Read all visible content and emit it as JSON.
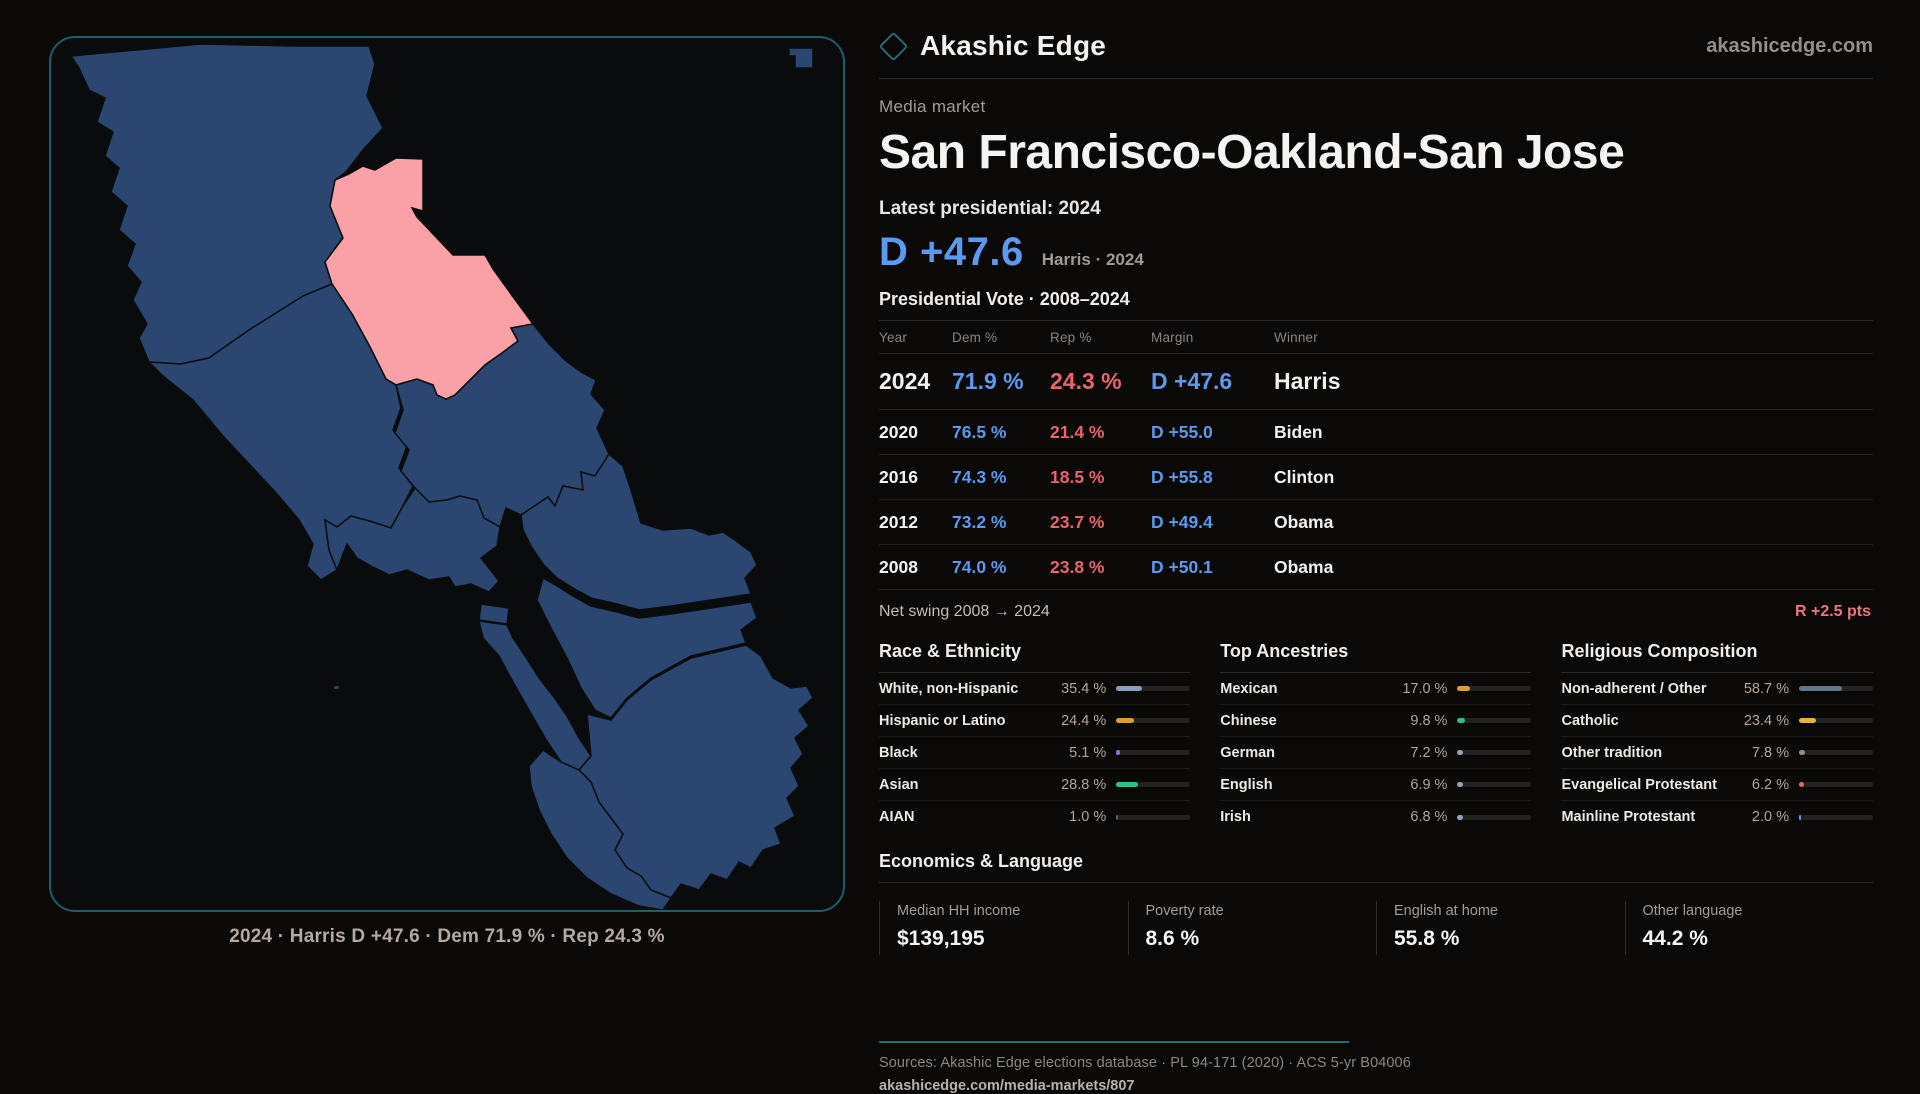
{
  "brand": {
    "name": "Akashic Edge",
    "site": "akashicedge.com"
  },
  "page": {
    "kicker": "Media market",
    "title": "San Francisco-Oakland-San Jose",
    "latest_label": "Latest presidential: 2024",
    "headline_margin": "D +47.6",
    "headline_caption": "Harris · 2024"
  },
  "vote_table": {
    "title": "Presidential Vote · 2008–2024",
    "columns": [
      "Year",
      "Dem %",
      "Rep %",
      "Margin",
      "Winner"
    ],
    "rows": [
      {
        "year": "2024",
        "dem": "71.9 %",
        "rep": "24.3 %",
        "margin": "D +47.6",
        "winner": "Harris",
        "highlight": true
      },
      {
        "year": "2020",
        "dem": "76.5 %",
        "rep": "21.4 %",
        "margin": "D +55.0",
        "winner": "Biden",
        "highlight": false
      },
      {
        "year": "2016",
        "dem": "74.3 %",
        "rep": "18.5 %",
        "margin": "D +55.8",
        "winner": "Clinton",
        "highlight": false
      },
      {
        "year": "2012",
        "dem": "73.2 %",
        "rep": "23.7 %",
        "margin": "D +49.4",
        "winner": "Obama",
        "highlight": false
      },
      {
        "year": "2008",
        "dem": "74.0 %",
        "rep": "23.8 %",
        "margin": "D +50.1",
        "winner": "Obama",
        "highlight": false
      }
    ]
  },
  "net_swing": {
    "label": "Net swing 2008 → 2024",
    "value": "R +2.5 pts"
  },
  "demographics": [
    {
      "title": "Race & Ethnicity",
      "rows": [
        {
          "label": "White, non-Hispanic",
          "value": "35.4 %",
          "pct": 35.4,
          "color": "#8d9cb8"
        },
        {
          "label": "Hispanic or Latino",
          "value": "24.4 %",
          "pct": 24.4,
          "color": "#e29b33"
        },
        {
          "label": "Black",
          "value": "5.1 %",
          "pct": 5.1,
          "color": "#8a70d6"
        },
        {
          "label": "Asian",
          "value": "28.8 %",
          "pct": 28.8,
          "color": "#37bd8c"
        },
        {
          "label": "AIAN",
          "value": "1.0 %",
          "pct": 1.0,
          "color": "#5a5a58"
        }
      ]
    },
    {
      "title": "Top Ancestries",
      "rows": [
        {
          "label": "Mexican",
          "value": "17.0 %",
          "pct": 17.0,
          "color": "#e29b33"
        },
        {
          "label": "Chinese",
          "value": "9.8 %",
          "pct": 9.8,
          "color": "#37bd8c"
        },
        {
          "label": "German",
          "value": "7.2 %",
          "pct": 7.2,
          "color": "#93a3bd"
        },
        {
          "label": "English",
          "value": "6.9 %",
          "pct": 6.9,
          "color": "#93a3bd"
        },
        {
          "label": "Irish",
          "value": "6.8 %",
          "pct": 6.8,
          "color": "#93a3bd"
        }
      ]
    },
    {
      "title": "Religious Composition",
      "rows": [
        {
          "label": "Non-adherent / Other",
          "value": "58.7 %",
          "pct": 58.7,
          "color": "#64748e"
        },
        {
          "label": "Catholic",
          "value": "23.4 %",
          "pct": 23.4,
          "color": "#e2b833"
        },
        {
          "label": "Other tradition",
          "value": "7.8 %",
          "pct": 7.8,
          "color": "#8f8f8f"
        },
        {
          "label": "Evangelical Protestant",
          "value": "6.2 %",
          "pct": 6.2,
          "color": "#e06a6a"
        },
        {
          "label": "Mainline Protestant",
          "value": "2.0 %",
          "pct": 2.0,
          "color": "#5b9bf0"
        }
      ]
    }
  ],
  "economics": {
    "title": "Economics & Language",
    "cards": [
      {
        "label": "Median HH income",
        "value": "$139,195"
      },
      {
        "label": "Poverty rate",
        "value": "8.6 %"
      },
      {
        "label": "English at home",
        "value": "55.8 %"
      },
      {
        "label": "Other language",
        "value": "44.2 %"
      }
    ]
  },
  "map": {
    "caption": "2024 · Harris D +47.6 · Dem 71.9 % · Rep 24.3 %",
    "dem_fill": "#2b4671",
    "rep_fill": "#f9a1a6"
  },
  "footer": {
    "sources": "Sources: Akashic Edge elections database · PL 94-171 (2020) · ACS 5-yr B04006",
    "permalink": "akashicedge.com/media-markets/807"
  },
  "colors": {
    "dem_blue": "#5b9af0",
    "rep_red": "#e9646d",
    "swing_red": "#ef747c",
    "teal_accent": "#1b5f6a"
  }
}
